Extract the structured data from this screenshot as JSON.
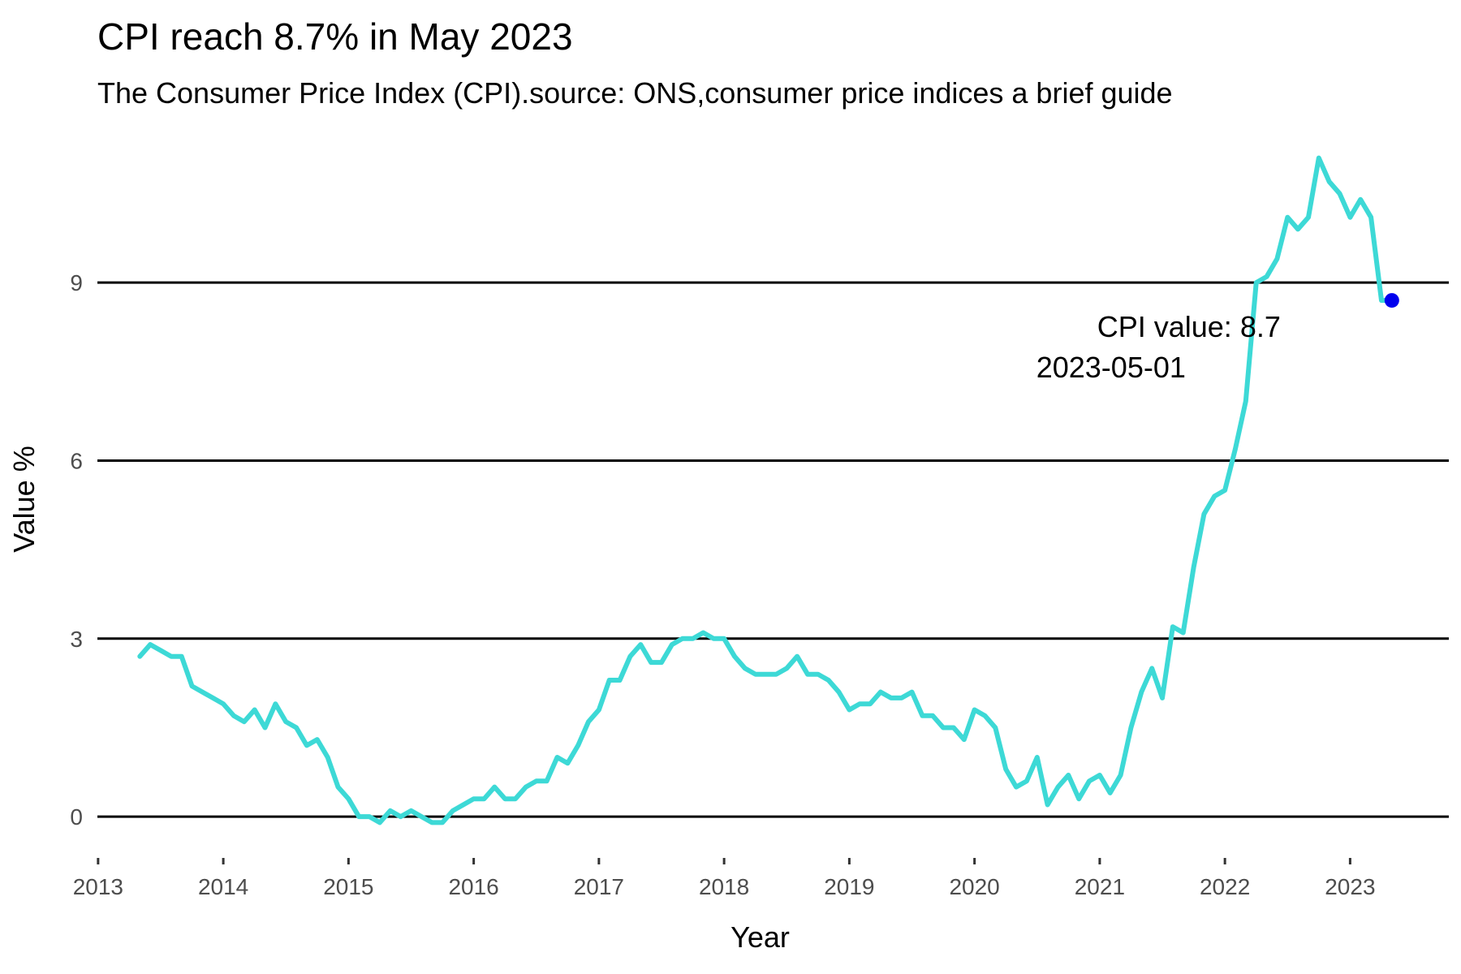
{
  "title": "CPI reach 8.7% in May 2023",
  "subtitle": "The Consumer Price Index (CPI).source: ONS,consumer price indices a brief guide",
  "chart_data": {
    "type": "line",
    "xlabel": "Year",
    "ylabel": "Value %",
    "x_ticks": [
      "2013",
      "2014",
      "2015",
      "2016",
      "2017",
      "2018",
      "2019",
      "2020",
      "2021",
      "2022",
      "2023"
    ],
    "y_ticks": [
      "0",
      "3",
      "6",
      "9"
    ],
    "xlim": [
      "2012-12-01",
      "2023-10-15"
    ],
    "ylim": [
      -0.6,
      11.3
    ],
    "grid": "horizontal major lines only",
    "line_color": "#3dd9d6",
    "highlight_color": "#0000ee",
    "series": [
      {
        "x": [
          "2013-05-01",
          "2013-06-01",
          "2013-07-01",
          "2013-08-01",
          "2013-09-01",
          "2013-10-01",
          "2013-11-01",
          "2013-12-01",
          "2014-01-01",
          "2014-02-01",
          "2014-03-01",
          "2014-04-01",
          "2014-05-01",
          "2014-06-01",
          "2014-07-01",
          "2014-08-01",
          "2014-09-01",
          "2014-10-01",
          "2014-11-01",
          "2014-12-01",
          "2015-01-01",
          "2015-02-01",
          "2015-03-01",
          "2015-04-01",
          "2015-05-01",
          "2015-06-01",
          "2015-07-01",
          "2015-08-01",
          "2015-09-01",
          "2015-10-01",
          "2015-11-01",
          "2015-12-01",
          "2016-01-01",
          "2016-02-01",
          "2016-03-01",
          "2016-04-01",
          "2016-05-01",
          "2016-06-01",
          "2016-07-01",
          "2016-08-01",
          "2016-09-01",
          "2016-10-01",
          "2016-11-01",
          "2016-12-01",
          "2017-01-01",
          "2017-02-01",
          "2017-03-01",
          "2017-04-01",
          "2017-05-01",
          "2017-06-01",
          "2017-07-01",
          "2017-08-01",
          "2017-09-01",
          "2017-10-01",
          "2017-11-01",
          "2017-12-01",
          "2018-01-01",
          "2018-02-01",
          "2018-03-01",
          "2018-04-01",
          "2018-05-01",
          "2018-06-01",
          "2018-07-01",
          "2018-08-01",
          "2018-09-01",
          "2018-10-01",
          "2018-11-01",
          "2018-12-01",
          "2019-01-01",
          "2019-02-01",
          "2019-03-01",
          "2019-04-01",
          "2019-05-01",
          "2019-06-01",
          "2019-07-01",
          "2019-08-01",
          "2019-09-01",
          "2019-10-01",
          "2019-11-01",
          "2019-12-01",
          "2020-01-01",
          "2020-02-01",
          "2020-03-01",
          "2020-04-01",
          "2020-05-01",
          "2020-06-01",
          "2020-07-01",
          "2020-08-01",
          "2020-09-01",
          "2020-10-01",
          "2020-11-01",
          "2020-12-01",
          "2021-01-01",
          "2021-02-01",
          "2021-03-01",
          "2021-04-01",
          "2021-05-01",
          "2021-06-01",
          "2021-07-01",
          "2021-08-01",
          "2021-09-01",
          "2021-10-01",
          "2021-11-01",
          "2021-12-01",
          "2022-01-01",
          "2022-02-01",
          "2022-03-01",
          "2022-04-01",
          "2022-05-01",
          "2022-06-01",
          "2022-07-01",
          "2022-08-01",
          "2022-09-01",
          "2022-10-01",
          "2022-11-01",
          "2022-12-01",
          "2023-01-01",
          "2023-02-01",
          "2023-03-01",
          "2023-04-01",
          "2023-05-01"
        ],
        "values": [
          2.7,
          2.9,
          2.8,
          2.7,
          2.7,
          2.2,
          2.1,
          2.0,
          1.9,
          1.7,
          1.6,
          1.8,
          1.5,
          1.9,
          1.6,
          1.5,
          1.2,
          1.3,
          1.0,
          0.5,
          0.3,
          0.0,
          0.0,
          -0.1,
          0.1,
          0.0,
          0.1,
          0.0,
          -0.1,
          -0.1,
          0.1,
          0.2,
          0.3,
          0.3,
          0.5,
          0.3,
          0.3,
          0.5,
          0.6,
          0.6,
          1.0,
          0.9,
          1.2,
          1.6,
          1.8,
          2.3,
          2.3,
          2.7,
          2.9,
          2.6,
          2.6,
          2.9,
          3.0,
          3.0,
          3.1,
          3.0,
          3.0,
          2.7,
          2.5,
          2.4,
          2.4,
          2.4,
          2.5,
          2.7,
          2.4,
          2.4,
          2.3,
          2.1,
          1.8,
          1.9,
          1.9,
          2.1,
          2.0,
          2.0,
          2.1,
          1.7,
          1.7,
          1.5,
          1.5,
          1.3,
          1.8,
          1.7,
          1.5,
          0.8,
          0.5,
          0.6,
          1.0,
          0.2,
          0.5,
          0.7,
          0.3,
          0.6,
          0.7,
          0.4,
          0.7,
          1.5,
          2.1,
          2.5,
          2.0,
          3.2,
          3.1,
          4.2,
          5.1,
          5.4,
          5.5,
          6.2,
          7.0,
          9.0,
          9.1,
          9.4,
          10.1,
          9.9,
          10.1,
          11.1,
          10.7,
          10.5,
          10.1,
          10.4,
          10.1,
          8.7,
          8.7
        ]
      }
    ],
    "highlight": {
      "x": "2023-05-01",
      "y": 8.7
    },
    "annotation": {
      "line1": "CPI value: 8.7",
      "line2": "2023-05-01"
    }
  }
}
